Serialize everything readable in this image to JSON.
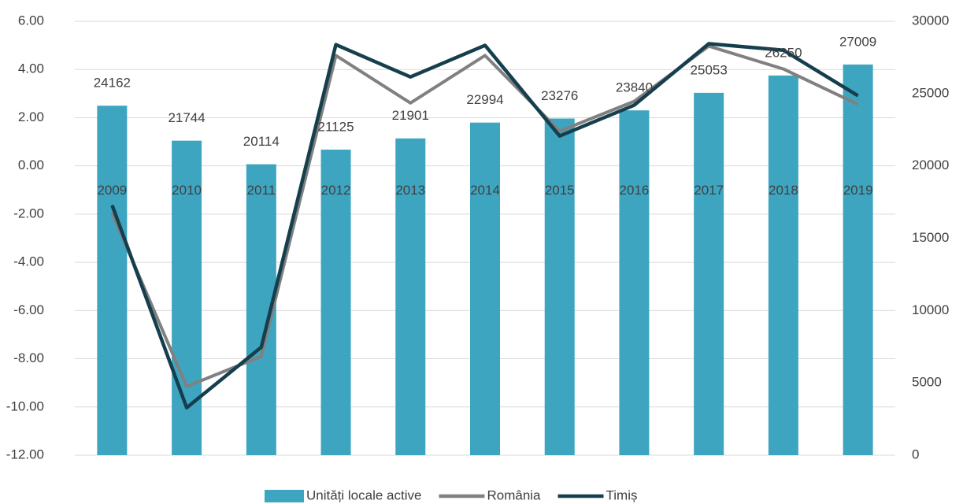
{
  "chart_data": {
    "type": "combo",
    "categories": [
      "2009",
      "2010",
      "2011",
      "2012",
      "2013",
      "2014",
      "2015",
      "2016",
      "2017",
      "2018",
      "2019"
    ],
    "series": [
      {
        "name": "Unități locale active",
        "type": "bar",
        "axis": "y2",
        "color": "#3ea5c1",
        "values": [
          24162,
          21744,
          20114,
          21125,
          21901,
          22994,
          23276,
          23840,
          25053,
          26250,
          27009
        ]
      },
      {
        "name": "România",
        "type": "line",
        "axis": "y",
        "color": "#808080",
        "values": [
          -1.96,
          -9.15,
          -7.9,
          4.58,
          2.61,
          4.58,
          1.44,
          2.68,
          4.97,
          4.02,
          2.55
        ]
      },
      {
        "name": "Timiș",
        "type": "line",
        "axis": "y",
        "color": "#163f4e",
        "values": [
          -1.63,
          -10.03,
          -7.52,
          5.03,
          3.69,
          5.0,
          1.24,
          2.52,
          5.07,
          4.8,
          2.91
        ]
      }
    ],
    "ylim": [
      -12,
      6
    ],
    "yticks": [
      {
        "value": -12,
        "label": "-12.00"
      },
      {
        "value": -10,
        "label": "-10.00"
      },
      {
        "value": -8,
        "label": "-8.00"
      },
      {
        "value": -6,
        "label": "-6.00"
      },
      {
        "value": -4,
        "label": "-4.00"
      },
      {
        "value": -2,
        "label": "-2.00"
      },
      {
        "value": 0,
        "label": "0.00"
      },
      {
        "value": 2,
        "label": "2.00"
      },
      {
        "value": 4,
        "label": "4.00"
      },
      {
        "value": 6,
        "label": "6.00"
      }
    ],
    "y2lim": [
      0,
      30000
    ],
    "y2ticks": [
      0,
      5000,
      10000,
      15000,
      20000,
      25000,
      30000
    ],
    "grid": true
  }
}
